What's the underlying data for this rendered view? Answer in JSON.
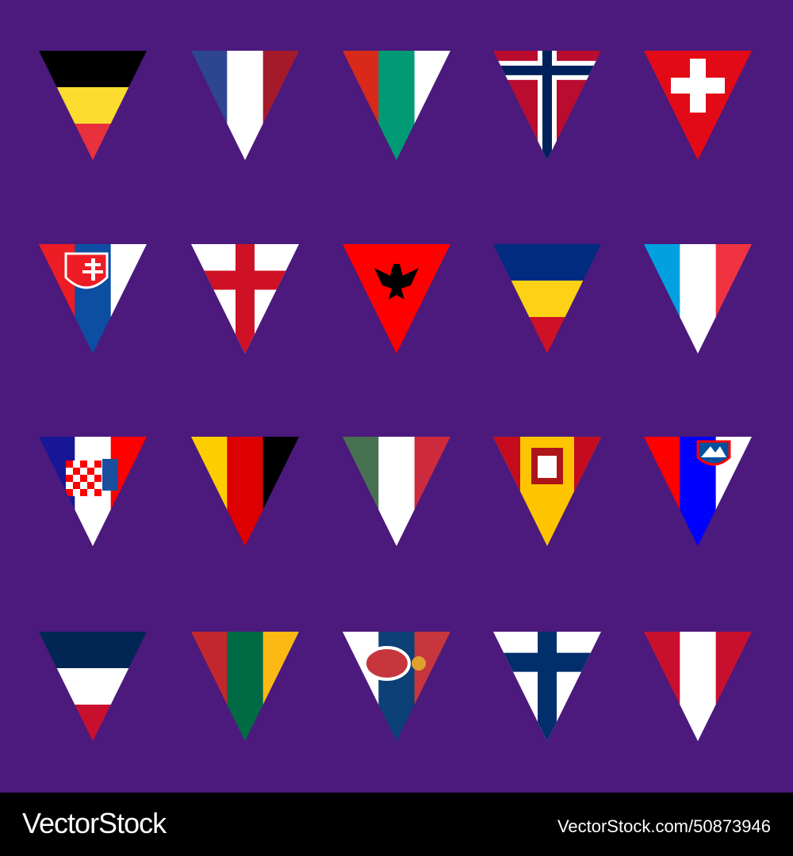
{
  "background": "#4b1a7c",
  "flags": [
    {
      "type": "h",
      "colors": [
        "#000000",
        "#fbdc2f",
        "#e8313d"
      ]
    },
    {
      "type": "v",
      "colors": [
        "#2e4591",
        "#ffffff",
        "#a51a2a"
      ]
    },
    {
      "type": "v",
      "colors": [
        "#d8291a",
        "#009b74",
        "#ffffff"
      ]
    },
    {
      "type": "nordic",
      "colors": [
        "#ba0c2f",
        "#ffffff",
        "#00205b"
      ],
      "cross_y": 0.18
    },
    {
      "type": "swiss",
      "colors": [
        "#e30a17",
        "#ffffff"
      ]
    },
    {
      "type": "v",
      "colors": [
        "#ee1c25",
        "#0b4ea2",
        "#ffffff"
      ],
      "emblem": "slovakia"
    },
    {
      "type": "cross",
      "colors": [
        "#ffffff",
        "#ce1124"
      ],
      "cross_y": 0.33
    },
    {
      "type": "albania",
      "colors": [
        "#ff0000",
        "#000000"
      ]
    },
    {
      "type": "h",
      "colors": [
        "#002b7f",
        "#fcd116",
        "#ce1126"
      ]
    },
    {
      "type": "v",
      "colors": [
        "#00a1de",
        "#ffffff",
        "#ef3340"
      ]
    },
    {
      "type": "v",
      "colors": [
        "#171796",
        "#ffffff",
        "#ff0000"
      ],
      "emblem": "croatia"
    },
    {
      "type": "v",
      "colors": [
        "#ffce00",
        "#dd0000",
        "#000000"
      ]
    },
    {
      "type": "v",
      "colors": [
        "#477050",
        "#ffffff",
        "#cd2a3e"
      ]
    },
    {
      "type": "spain",
      "colors": [
        "#c60b1e",
        "#ffc400",
        "#c60b1e"
      ],
      "emblem": "spain"
    },
    {
      "type": "v",
      "colors": [
        "#ff0000",
        "#0000ff",
        "#ffffff"
      ],
      "emblem": "slovenia"
    },
    {
      "type": "h",
      "colors": [
        "#002654",
        "#ffffff",
        "#c8102e"
      ]
    },
    {
      "type": "v",
      "colors": [
        "#c1272d",
        "#006a44",
        "#fdb913"
      ]
    },
    {
      "type": "v",
      "colors": [
        "#ffffff",
        "#0c4077",
        "#c6363c"
      ],
      "emblem": "serbia"
    },
    {
      "type": "cross",
      "colors": [
        "#ffffff",
        "#002f6c"
      ],
      "cross_y": 0.28
    },
    {
      "type": "v",
      "colors": [
        "#c8102e",
        "#ffffff",
        "#c8102e"
      ]
    }
  ],
  "footer": {
    "brand": "VectorStock",
    "ref": "VectorStock.com/50873946"
  }
}
